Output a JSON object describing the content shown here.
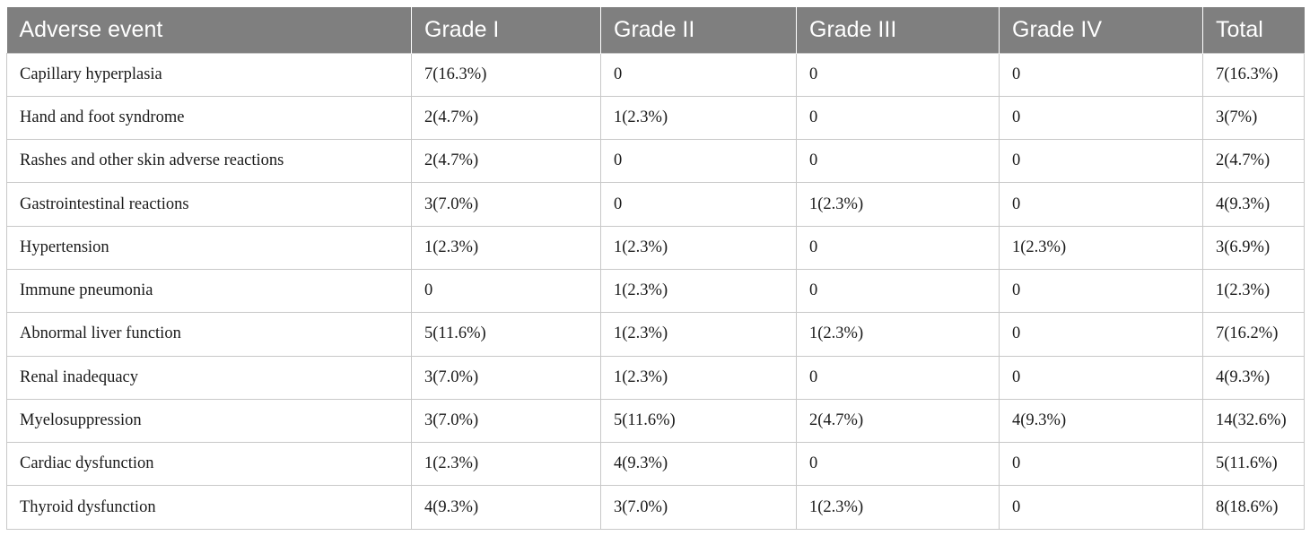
{
  "table": {
    "headers": [
      "Adverse event",
      "Grade I",
      "Grade II",
      "Grade III",
      "Grade IV",
      "Total"
    ],
    "rows": [
      [
        "Capillary hyperplasia",
        "7(16.3%)",
        "0",
        "0",
        "0",
        "7(16.3%)"
      ],
      [
        "Hand and foot syndrome",
        "2(4.7%)",
        "1(2.3%)",
        "0",
        "0",
        "3(7%)"
      ],
      [
        "Rashes and other skin adverse reactions",
        "2(4.7%)",
        "0",
        "0",
        "0",
        "2(4.7%)"
      ],
      [
        "Gastrointestinal reactions",
        "3(7.0%)",
        "0",
        "1(2.3%)",
        "0",
        "4(9.3%)"
      ],
      [
        "Hypertension",
        "1(2.3%)",
        "1(2.3%)",
        "0",
        "1(2.3%)",
        "3(6.9%)"
      ],
      [
        "Immune pneumonia",
        "0",
        "1(2.3%)",
        "0",
        "0",
        "1(2.3%)"
      ],
      [
        "Abnormal liver function",
        "5(11.6%)",
        "1(2.3%)",
        "1(2.3%)",
        "0",
        "7(16.2%)"
      ],
      [
        "Renal inadequacy",
        "3(7.0%)",
        "1(2.3%)",
        "0",
        "0",
        "4(9.3%)"
      ],
      [
        "Myelosuppression",
        "3(7.0%)",
        "5(11.6%)",
        "2(4.7%)",
        "4(9.3%)",
        "14(32.6%)"
      ],
      [
        "Cardiac dysfunction",
        "1(2.3%)",
        "4(9.3%)",
        "0",
        "0",
        "5(11.6%)"
      ],
      [
        "Thyroid dysfunction",
        "4(9.3%)",
        "3(7.0%)",
        "1(2.3%)",
        "0",
        "8(18.6%)"
      ]
    ]
  },
  "colors": {
    "header_background": "#7f7f7f",
    "header_text": "#ffffff",
    "grid_lines": "#c8c8c8",
    "body_text": "#1a1a1a"
  }
}
